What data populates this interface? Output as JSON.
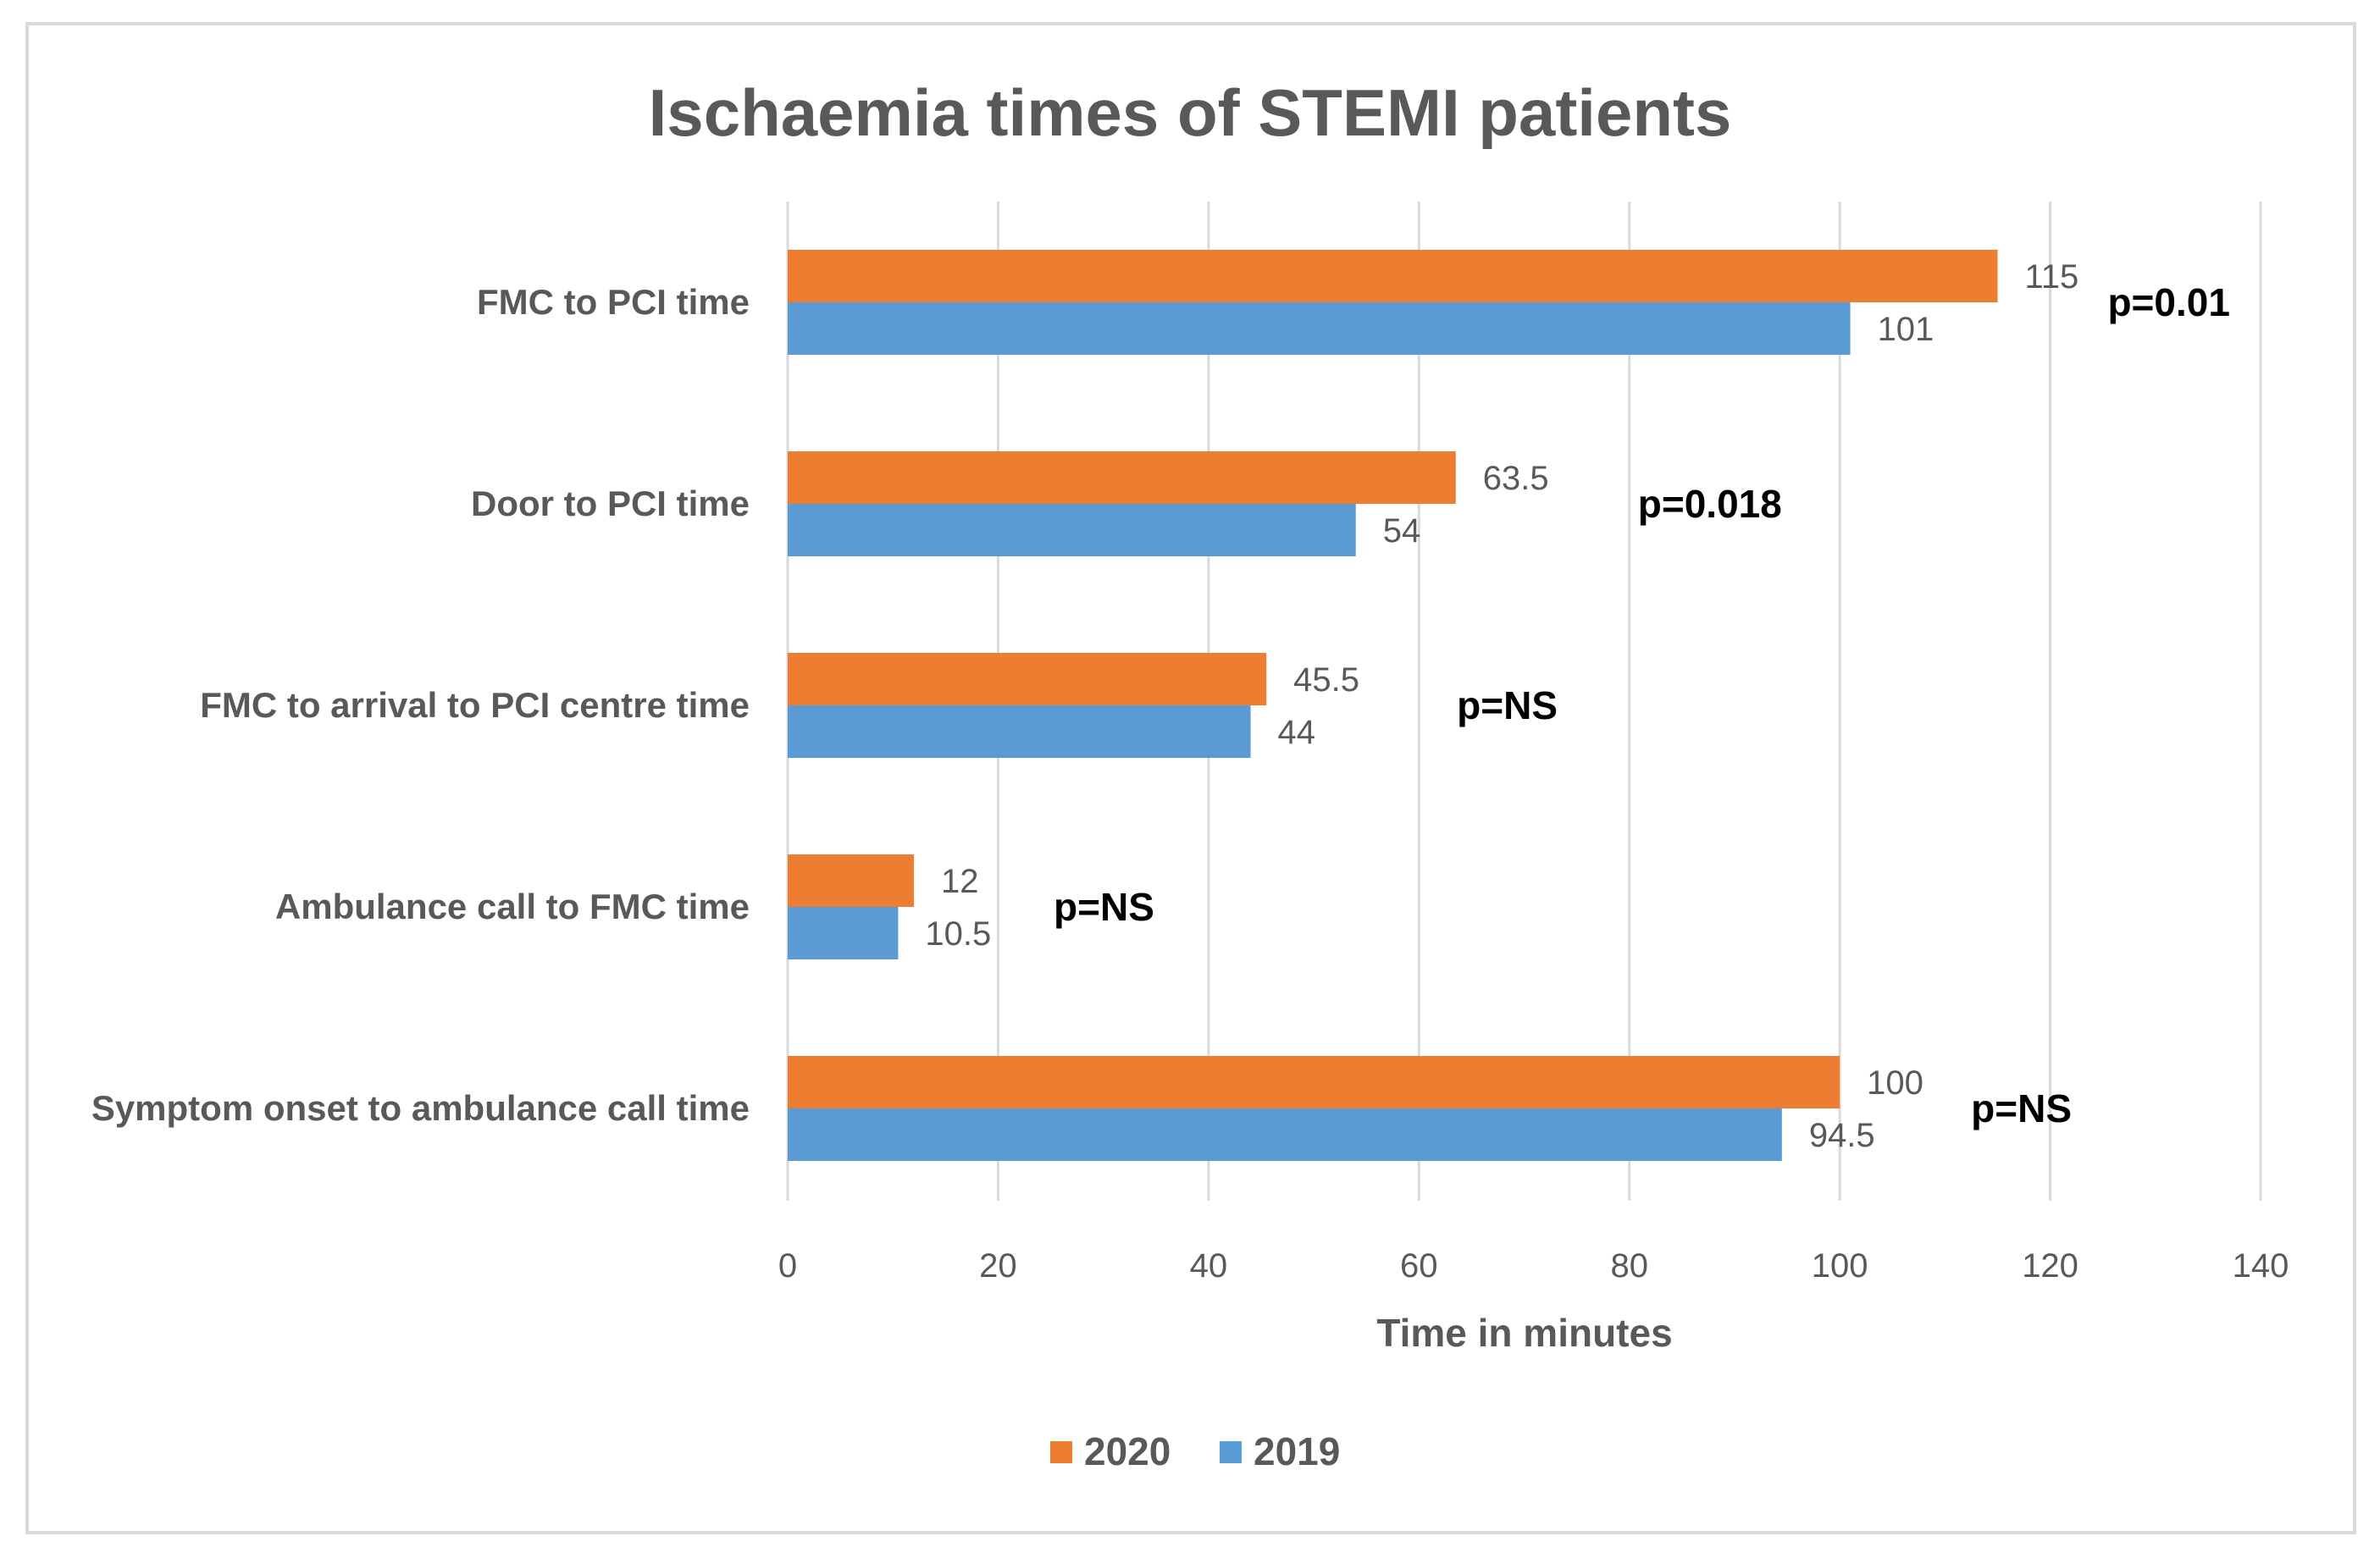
{
  "chart_data": {
    "type": "bar",
    "orientation": "horizontal",
    "title": "Ischaemia times of STEMI patients",
    "xlabel": "Time in minutes",
    "ylabel": "",
    "xlim": [
      0,
      140
    ],
    "x_ticks": [
      0,
      20,
      40,
      60,
      80,
      100,
      120,
      140
    ],
    "grid": true,
    "legend_position": "bottom",
    "categories": [
      "FMC to PCI time",
      "Door to PCI time",
      "FMC to arrival to PCI centre time",
      "Ambulance call to FMC time",
      "Symptom onset to ambulance call time"
    ],
    "series": [
      {
        "name": "2020",
        "color": "#ed7d31",
        "values": [
          115,
          63.5,
          45.5,
          12,
          100
        ],
        "labels": [
          "115",
          "63.5",
          "45.5",
          "12",
          "100"
        ]
      },
      {
        "name": "2019",
        "color": "#5b9bd5",
        "values": [
          101,
          54,
          44,
          10.5,
          94.5
        ],
        "labels": [
          "101",
          "54",
          "44",
          "10.5",
          "94.5"
        ]
      }
    ],
    "annotations": [
      "p=0.01",
      "p=0.018",
      "p=NS",
      "p=NS",
      "p=NS"
    ]
  },
  "colors": {
    "grid": "#d9d9d9",
    "text": "#595959",
    "annotation": "#000000"
  }
}
